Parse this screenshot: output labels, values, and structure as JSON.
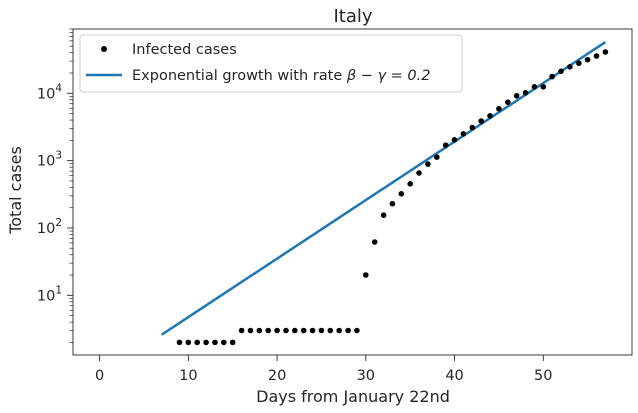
{
  "chart_data": {
    "type": "scatter",
    "title": "Italy",
    "xlabel": "Days from January 22nd",
    "ylabel": "Total cases",
    "xlim": [
      -3,
      60
    ],
    "ylim": [
      1.3,
      90000
    ],
    "yscale": "log",
    "x_ticks": [
      {
        "value": 0,
        "label": "0"
      },
      {
        "value": 10,
        "label": "10"
      },
      {
        "value": 20,
        "label": "20"
      },
      {
        "value": 30,
        "label": "30"
      },
      {
        "value": 40,
        "label": "40"
      },
      {
        "value": 50,
        "label": "50"
      }
    ],
    "y_ticks": [
      {
        "value": 10,
        "base": "10",
        "exp": "1"
      },
      {
        "value": 100,
        "base": "10",
        "exp": "2"
      },
      {
        "value": 1000,
        "base": "10",
        "exp": "3"
      },
      {
        "value": 10000,
        "base": "10",
        "exp": "4"
      }
    ],
    "grid": false,
    "legend_position": "top-left",
    "series": [
      {
        "name": "Infected cases",
        "kind": "scatter",
        "color": "#000000",
        "x": [
          9,
          10,
          11,
          12,
          13,
          14,
          15,
          16,
          17,
          18,
          19,
          20,
          21,
          22,
          23,
          24,
          25,
          26,
          27,
          28,
          29,
          30,
          31,
          32,
          33,
          34,
          35,
          36,
          37,
          38,
          39,
          40,
          41,
          42,
          43,
          44,
          45,
          46,
          47,
          48,
          49,
          50,
          51,
          52,
          53,
          54,
          55,
          56,
          57
        ],
        "y": [
          2,
          2,
          2,
          2,
          2,
          2,
          2,
          3,
          3,
          3,
          3,
          3,
          3,
          3,
          3,
          3,
          3,
          3,
          3,
          3,
          3,
          20,
          62,
          155,
          229,
          322,
          453,
          655,
          888,
          1128,
          1694,
          2036,
          2502,
          3089,
          3858,
          4636,
          5883,
          7375,
          9172,
          10149,
          12462,
          12462,
          17660,
          21157,
          24747,
          27980,
          31506,
          35713,
          41035
        ]
      },
      {
        "name": "Exponential growth with rate β − γ = 0.2",
        "legend_prefix": "Exponential growth with rate ",
        "legend_math": "β − γ = 0.2",
        "kind": "line",
        "color": "#1f77b4",
        "x": [
          7,
          57
        ],
        "y": [
          2.6,
          57500
        ]
      }
    ]
  }
}
